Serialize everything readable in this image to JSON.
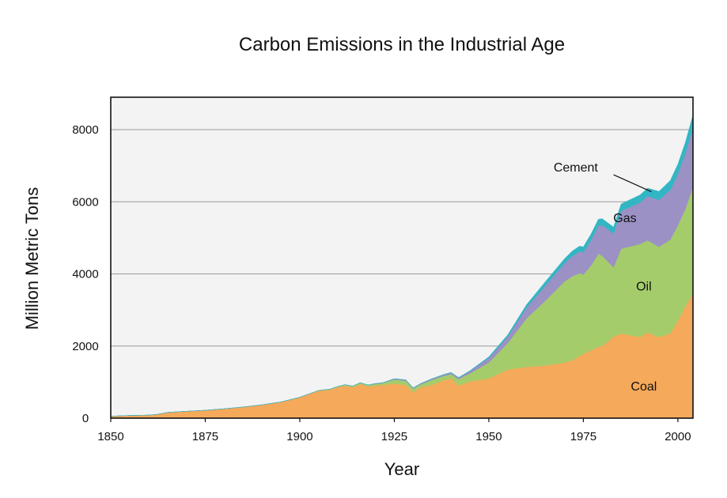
{
  "chart_data": {
    "type": "area",
    "stacked": true,
    "title": "Carbon Emissions in the Industrial Age",
    "xlabel": "Year",
    "ylabel": "Million Metric Tons",
    "xlim": [
      1850,
      2004
    ],
    "ylim": [
      0,
      8900
    ],
    "xticks": [
      1850,
      1875,
      1900,
      1925,
      1950,
      1975,
      2000
    ],
    "yticks": [
      0,
      2000,
      4000,
      6000,
      8000
    ],
    "grid": "horizontal",
    "x": [
      1850,
      1855,
      1860,
      1862,
      1865,
      1870,
      1875,
      1880,
      1885,
      1890,
      1895,
      1900,
      1905,
      1908,
      1910,
      1912,
      1914,
      1916,
      1918,
      1920,
      1922,
      1925,
      1928,
      1930,
      1932,
      1935,
      1938,
      1940,
      1942,
      1945,
      1950,
      1955,
      1960,
      1965,
      1970,
      1972,
      1974,
      1975,
      1977,
      1979,
      1980,
      1983,
      1985,
      1990,
      1992,
      1995,
      1998,
      2000,
      2002,
      2004
    ],
    "series": [
      {
        "name": "Coal",
        "color": "#f5a95a",
        "values": [
          55,
          75,
          85,
          100,
          160,
          190,
          220,
          260,
          310,
          370,
          450,
          580,
          760,
          790,
          860,
          900,
          860,
          950,
          880,
          900,
          920,
          960,
          920,
          720,
          860,
          920,
          1050,
          1100,
          900,
          1020,
          1100,
          1350,
          1420,
          1460,
          1540,
          1600,
          1720,
          1780,
          1880,
          1980,
          2000,
          2260,
          2350,
          2250,
          2380,
          2250,
          2350,
          2700,
          3100,
          3460
        ]
      },
      {
        "name": "Oil",
        "color": "#a5cc6b",
        "values": [
          0,
          0,
          0,
          0,
          0,
          0,
          0,
          0,
          0,
          0,
          0,
          0,
          10,
          15,
          20,
          25,
          25,
          30,
          35,
          50,
          55,
          110,
          120,
          100,
          80,
          140,
          120,
          120,
          180,
          220,
          440,
          730,
          1350,
          1800,
          2250,
          2330,
          2300,
          2200,
          2350,
          2580,
          2500,
          1920,
          2350,
          2580,
          2550,
          2500,
          2600,
          2650,
          2700,
          2960
        ]
      },
      {
        "name": "Gas",
        "color": "#9b91c4",
        "values": [
          0,
          0,
          0,
          0,
          0,
          0,
          0,
          0,
          0,
          0,
          0,
          0,
          0,
          0,
          0,
          5,
          5,
          5,
          5,
          10,
          10,
          20,
          20,
          20,
          20,
          25,
          30,
          40,
          40,
          60,
          130,
          180,
          300,
          420,
          500,
          560,
          600,
          620,
          700,
          780,
          850,
          940,
          1050,
          1150,
          1230,
          1300,
          1380,
          1420,
          1550,
          1650
        ]
      },
      {
        "name": "Cement",
        "color": "#32b6c4",
        "values": [
          0,
          0,
          0,
          0,
          0,
          0,
          0,
          0,
          0,
          0,
          0,
          0,
          0,
          0,
          0,
          0,
          0,
          0,
          0,
          0,
          0,
          5,
          5,
          5,
          5,
          10,
          10,
          10,
          10,
          15,
          30,
          50,
          80,
          110,
          130,
          140,
          150,
          150,
          170,
          180,
          180,
          180,
          190,
          210,
          220,
          240,
          260,
          270,
          300,
          340
        ]
      }
    ],
    "annotations": [
      {
        "text": "Coal",
        "series": "Coal"
      },
      {
        "text": "Oil",
        "series": "Oil"
      },
      {
        "text": "Gas",
        "series": "Gas"
      },
      {
        "text": "Cement",
        "series": "Cement",
        "callout": true
      }
    ]
  }
}
